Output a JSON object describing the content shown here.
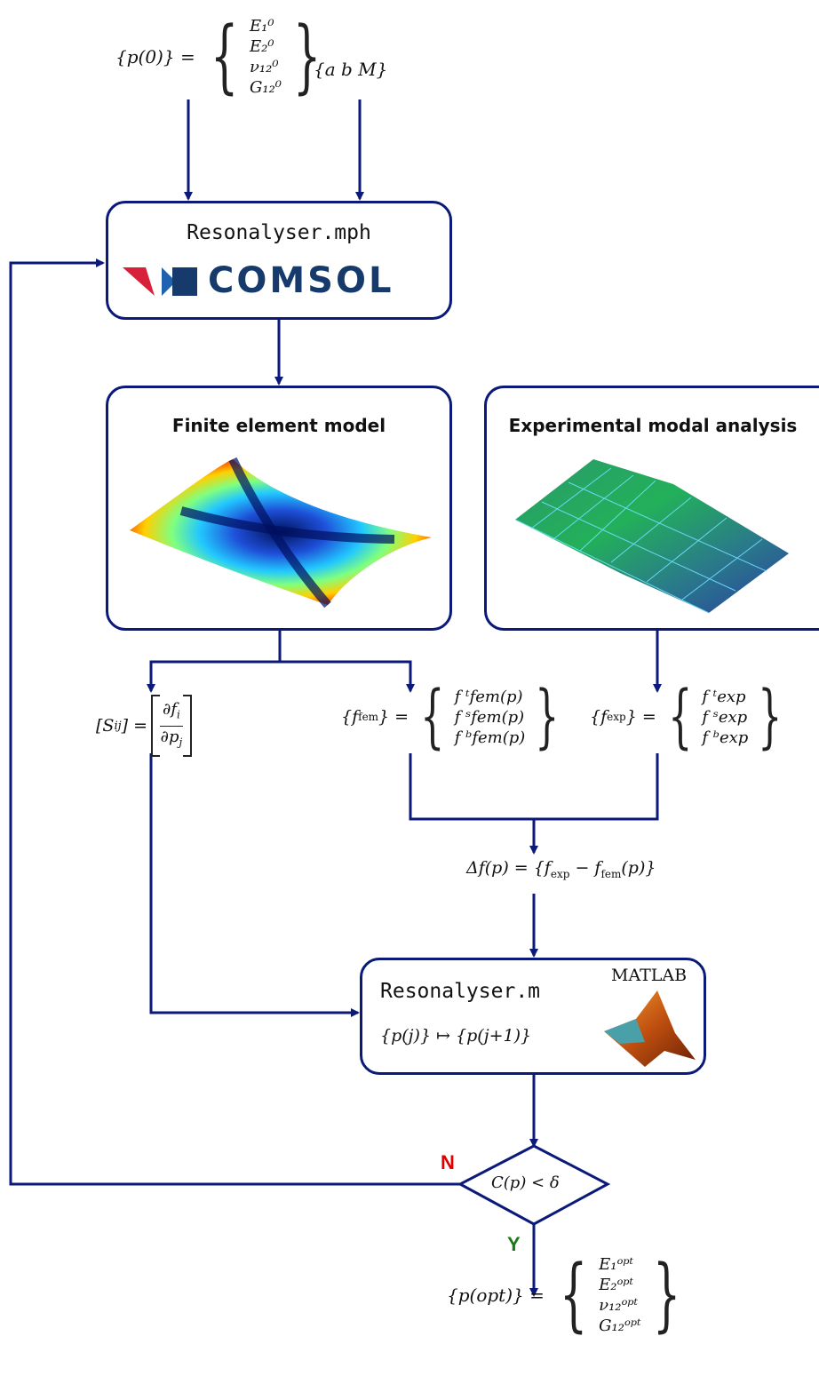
{
  "inputs": {
    "initial_params_lhs": "{p(0)} =",
    "initial_params": [
      "E₁⁰",
      "E₂⁰",
      "ν₁₂⁰",
      "G₁₂⁰"
    ],
    "geometry": "{a   b   M}"
  },
  "comsol_box": {
    "title": "Resonalyser.mph",
    "logo_text": "COMSOL"
  },
  "fem_box": {
    "title": "Finite element model"
  },
  "ema_box": {
    "title": "Experimental modal analysis"
  },
  "sensitivity": {
    "lhs": "[S",
    "lhs_sub": "ij",
    "lhs_end": "] =",
    "num": "∂f",
    "num_sub": "i",
    "den": "∂p",
    "den_sub": "j"
  },
  "f_fem": {
    "lhs": "{f",
    "lhs_sub": "fem",
    "lhs_end": "} =",
    "items": [
      "f ᵗfem(p)",
      "f ˢfem(p)",
      "f ᵇfem(p)"
    ]
  },
  "f_exp": {
    "lhs": "{f",
    "lhs_sub": "exp",
    "lhs_end": "} =",
    "items": [
      "f ᵗexp",
      "f ˢexp",
      "f ᵇexp"
    ]
  },
  "delta": {
    "text": "Δf(p) = {f",
    "sub1": "exp",
    "mid": " − f",
    "sub2": "fem",
    "end": "(p)}"
  },
  "matlab_box": {
    "title": "Resonalyser.m",
    "logo_text": "MATLAB",
    "update_rule": "{p(j)} ↦ {p(j+1)}"
  },
  "decision": {
    "condition": "C(p) < δ",
    "no_label": "N",
    "yes_label": "Y"
  },
  "output": {
    "lhs": "{p(opt)} =",
    "params": [
      "E₁ᵒᵖᵗ",
      "E₂ᵒᵖᵗ",
      "ν₁₂ᵒᵖᵗ",
      "G₁₂ᵒᵖᵗ"
    ]
  },
  "colors": {
    "line": "#0b1a7a",
    "no": "#e00000",
    "yes": "#1a7a1a",
    "comsol_blue": "#163a6b",
    "comsol_red": "#d8203a"
  }
}
